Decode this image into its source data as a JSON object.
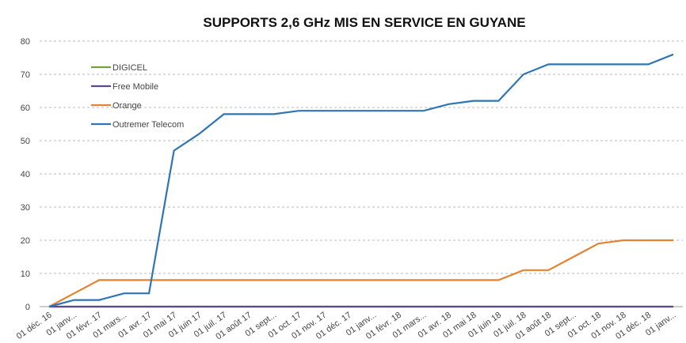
{
  "chart_data": {
    "type": "line",
    "title": "SUPPORTS 2,6 GHz MIS EN SERVICE EN GUYANE",
    "categories": [
      "01 déc. 16",
      "01 janv...",
      "01 févr. 17",
      "01 mars...",
      "01 avr. 17",
      "01 mai 17",
      "01 juin 17",
      "01 juil. 17",
      "01 août 17",
      "01 sept...",
      "01 oct. 17",
      "01 nov. 17",
      "01 déc. 17",
      "01 janv...",
      "01 févr. 18",
      "01 mars...",
      "01 avr. 18",
      "01 mai 18",
      "01 juin 18",
      "01 juil. 18",
      "01 août 18",
      "01 sept...",
      "01 oct. 18",
      "01 nov. 18",
      "01 déc. 18",
      "01 janv..."
    ],
    "series": [
      {
        "name": "DIGICEL",
        "color": "#77a03a",
        "values": [
          0,
          0,
          0,
          0,
          0,
          0,
          0,
          0,
          0,
          0,
          0,
          0,
          0,
          0,
          0,
          0,
          0,
          0,
          0,
          0,
          0,
          0,
          0,
          0,
          0,
          0
        ]
      },
      {
        "name": "Free Mobile",
        "color": "#5b4a8c",
        "values": [
          0,
          0,
          0,
          0,
          0,
          0,
          0,
          0,
          0,
          0,
          0,
          0,
          0,
          0,
          0,
          0,
          0,
          0,
          0,
          0,
          0,
          0,
          0,
          0,
          0,
          0
        ]
      },
      {
        "name": "Orange",
        "color": "#e6822e",
        "values": [
          0,
          4,
          8,
          8,
          8,
          8,
          8,
          8,
          8,
          8,
          8,
          8,
          8,
          8,
          8,
          8,
          8,
          8,
          8,
          11,
          11,
          15,
          19,
          20,
          20,
          20
        ]
      },
      {
        "name": "Outremer Telecom",
        "color": "#2e75b6",
        "values": [
          0,
          2,
          2,
          4,
          4,
          47,
          52,
          58,
          58,
          58,
          59,
          59,
          59,
          59,
          59,
          59,
          61,
          62,
          62,
          70,
          73,
          73,
          73,
          73,
          73,
          76
        ]
      }
    ],
    "ylim": [
      0,
      80
    ],
    "yticks": [
      0,
      10,
      20,
      30,
      40,
      50,
      60,
      70,
      80
    ],
    "grid": true,
    "legend": "upper left"
  }
}
